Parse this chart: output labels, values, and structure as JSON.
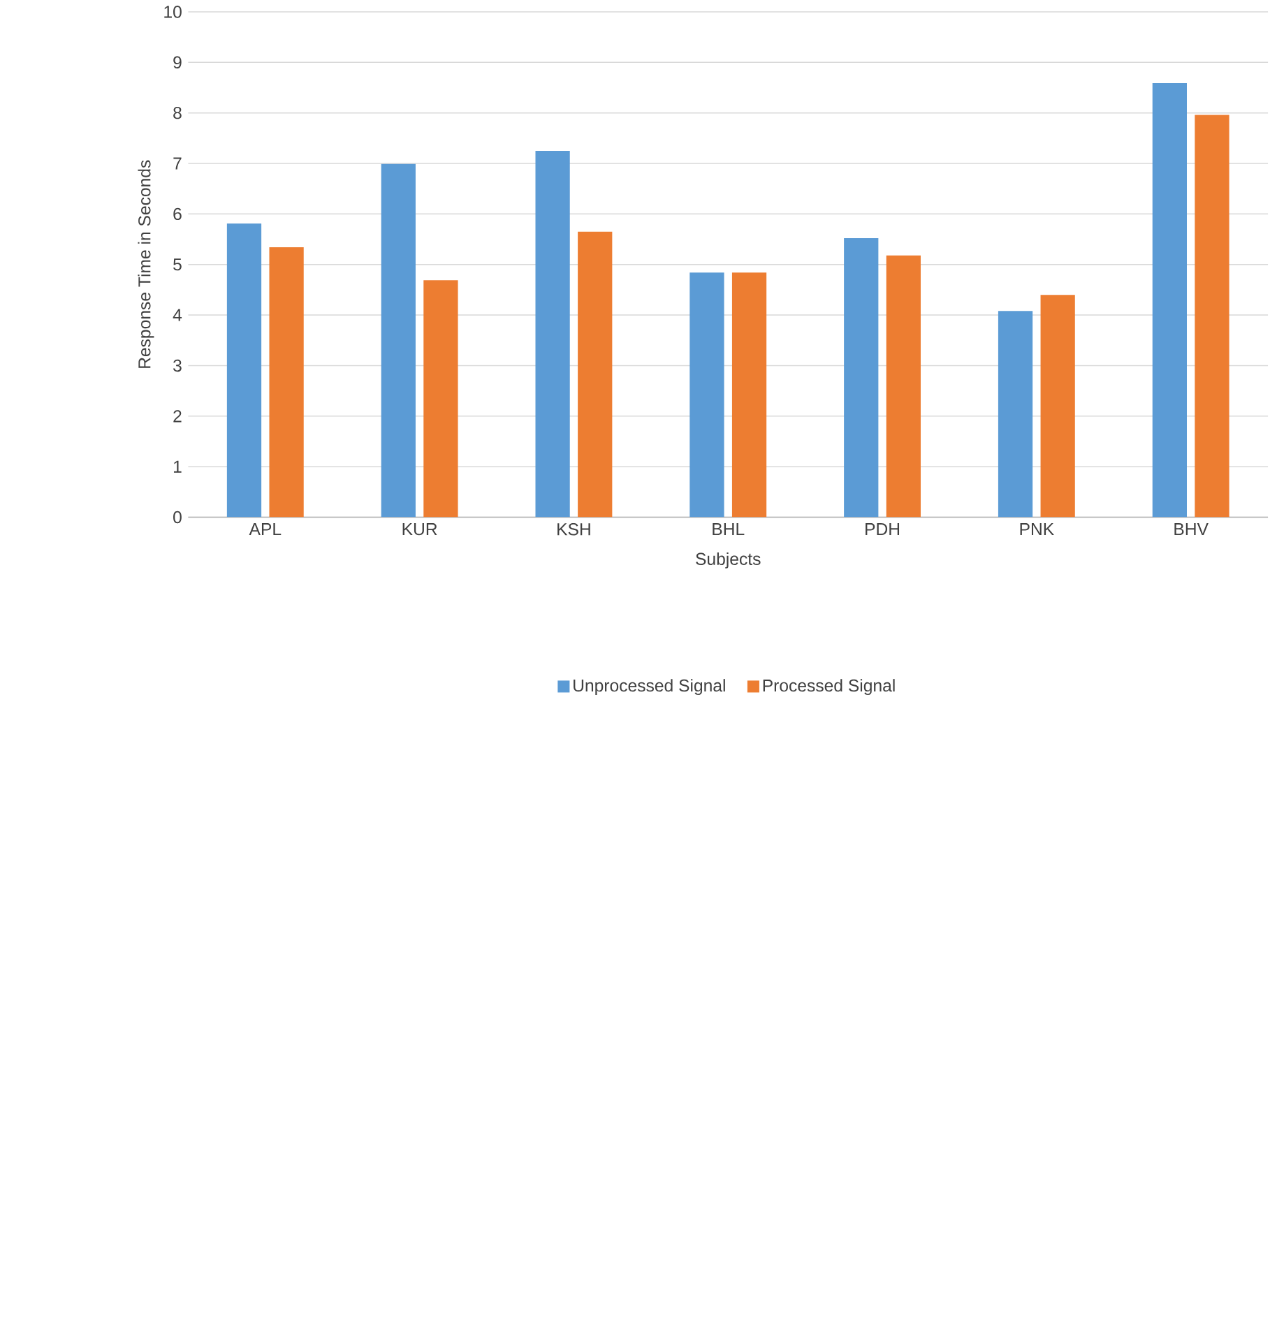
{
  "chart_data": {
    "type": "bar",
    "xlabel": "Subjects",
    "ylabel": "Response Time in Seconds",
    "categories": [
      "APL",
      "KUR",
      "KSH",
      "BHL",
      "PDH",
      "PNK",
      "BHV"
    ],
    "series": [
      {
        "name": "Unprocessed Signal",
        "color": "#5b9bd5",
        "values": [
          5.81,
          6.99,
          7.25,
          4.84,
          5.52,
          4.08,
          8.59
        ]
      },
      {
        "name": "Processed Signal",
        "color": "#ed7d31",
        "values": [
          5.34,
          4.69,
          5.65,
          4.84,
          5.18,
          4.4,
          7.96
        ]
      }
    ],
    "ylim": [
      0,
      10
    ],
    "yticks": [
      0,
      1,
      2,
      3,
      4,
      5,
      6,
      7,
      8,
      9,
      10
    ],
    "grid": "y",
    "legend": "bottom"
  }
}
